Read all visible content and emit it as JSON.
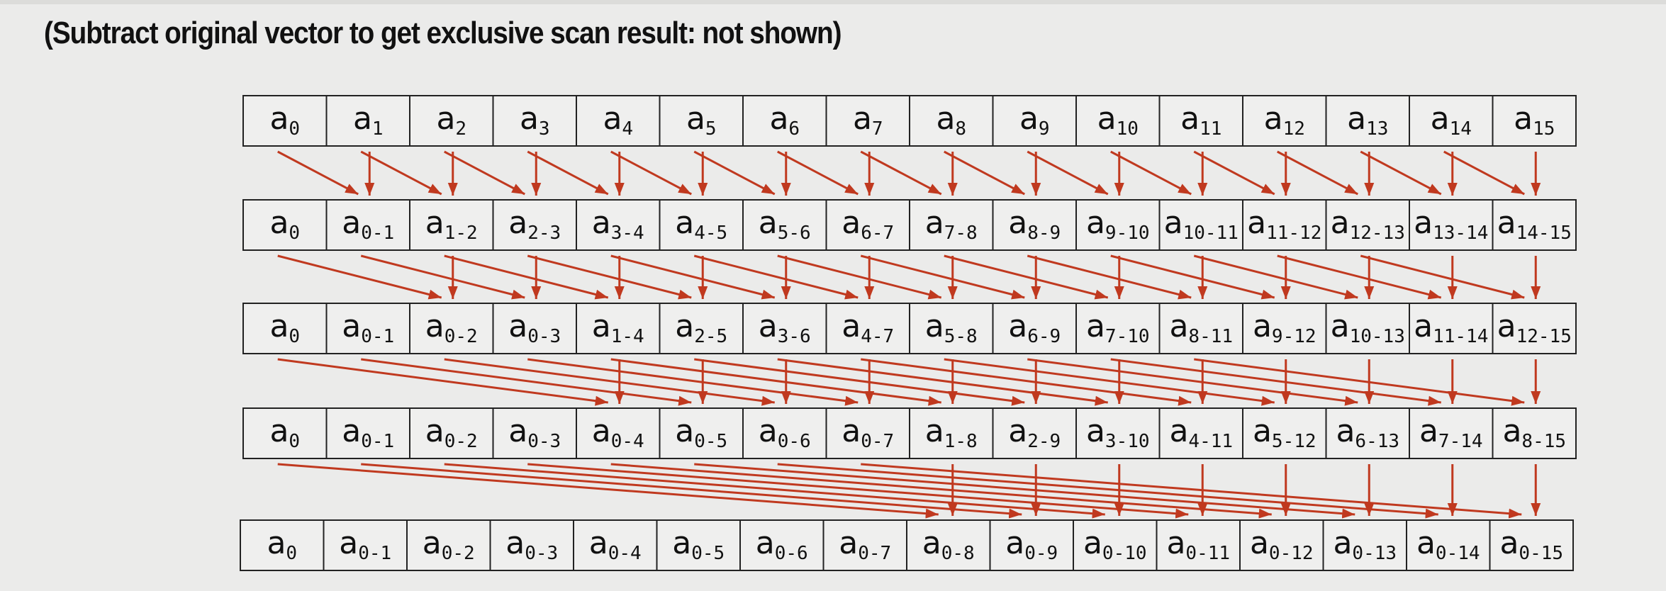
{
  "subtitle": "(Subtract original vector to get exclusive scan result: not shown)",
  "colors": {
    "arrow": "#c0391f",
    "cell_border": "#222222",
    "text": "#111111",
    "background": "#ebebea"
  },
  "rows": [
    {
      "step_offset": 0,
      "cells": [
        {
          "base": "a",
          "sub": "0"
        },
        {
          "base": "a",
          "sub": "1"
        },
        {
          "base": "a",
          "sub": "2"
        },
        {
          "base": "a",
          "sub": "3"
        },
        {
          "base": "a",
          "sub": "4"
        },
        {
          "base": "a",
          "sub": "5"
        },
        {
          "base": "a",
          "sub": "6"
        },
        {
          "base": "a",
          "sub": "7"
        },
        {
          "base": "a",
          "sub": "8"
        },
        {
          "base": "a",
          "sub": "9"
        },
        {
          "base": "a",
          "sub": "10"
        },
        {
          "base": "a",
          "sub": "11"
        },
        {
          "base": "a",
          "sub": "12"
        },
        {
          "base": "a",
          "sub": "13"
        },
        {
          "base": "a",
          "sub": "14"
        },
        {
          "base": "a",
          "sub": "15"
        }
      ]
    },
    {
      "step_offset": 1,
      "cells": [
        {
          "base": "a",
          "sub": "0"
        },
        {
          "base": "a",
          "sub": "0-1"
        },
        {
          "base": "a",
          "sub": "1-2"
        },
        {
          "base": "a",
          "sub": "2-3"
        },
        {
          "base": "a",
          "sub": "3-4"
        },
        {
          "base": "a",
          "sub": "4-5"
        },
        {
          "base": "a",
          "sub": "5-6"
        },
        {
          "base": "a",
          "sub": "6-7"
        },
        {
          "base": "a",
          "sub": "7-8"
        },
        {
          "base": "a",
          "sub": "8-9"
        },
        {
          "base": "a",
          "sub": "9-10"
        },
        {
          "base": "a",
          "sub": "10-11"
        },
        {
          "base": "a",
          "sub": "11-12"
        },
        {
          "base": "a",
          "sub": "12-13"
        },
        {
          "base": "a",
          "sub": "13-14"
        },
        {
          "base": "a",
          "sub": "14-15"
        }
      ]
    },
    {
      "step_offset": 2,
      "cells": [
        {
          "base": "a",
          "sub": "0"
        },
        {
          "base": "a",
          "sub": "0-1"
        },
        {
          "base": "a",
          "sub": "0-2"
        },
        {
          "base": "a",
          "sub": "0-3"
        },
        {
          "base": "a",
          "sub": "1-4"
        },
        {
          "base": "a",
          "sub": "2-5"
        },
        {
          "base": "a",
          "sub": "3-6"
        },
        {
          "base": "a",
          "sub": "4-7"
        },
        {
          "base": "a",
          "sub": "5-8"
        },
        {
          "base": "a",
          "sub": "6-9"
        },
        {
          "base": "a",
          "sub": "7-10"
        },
        {
          "base": "a",
          "sub": "8-11"
        },
        {
          "base": "a",
          "sub": "9-12"
        },
        {
          "base": "a",
          "sub": "10-13"
        },
        {
          "base": "a",
          "sub": "11-14"
        },
        {
          "base": "a",
          "sub": "12-15"
        }
      ]
    },
    {
      "step_offset": 4,
      "cells": [
        {
          "base": "a",
          "sub": "0"
        },
        {
          "base": "a",
          "sub": "0-1"
        },
        {
          "base": "a",
          "sub": "0-2"
        },
        {
          "base": "a",
          "sub": "0-3"
        },
        {
          "base": "a",
          "sub": "0-4"
        },
        {
          "base": "a",
          "sub": "0-5"
        },
        {
          "base": "a",
          "sub": "0-6"
        },
        {
          "base": "a",
          "sub": "0-7"
        },
        {
          "base": "a",
          "sub": "1-8"
        },
        {
          "base": "a",
          "sub": "2-9"
        },
        {
          "base": "a",
          "sub": "3-10"
        },
        {
          "base": "a",
          "sub": "4-11"
        },
        {
          "base": "a",
          "sub": "5-12"
        },
        {
          "base": "a",
          "sub": "6-13"
        },
        {
          "base": "a",
          "sub": "7-14"
        },
        {
          "base": "a",
          "sub": "8-15"
        }
      ]
    },
    {
      "step_offset": 8,
      "cells": [
        {
          "base": "a",
          "sub": "0"
        },
        {
          "base": "a",
          "sub": "0-1"
        },
        {
          "base": "a",
          "sub": "0-2"
        },
        {
          "base": "a",
          "sub": "0-3"
        },
        {
          "base": "a",
          "sub": "0-4"
        },
        {
          "base": "a",
          "sub": "0-5"
        },
        {
          "base": "a",
          "sub": "0-6"
        },
        {
          "base": "a",
          "sub": "0-7"
        },
        {
          "base": "a",
          "sub": "0-8"
        },
        {
          "base": "a",
          "sub": "0-9"
        },
        {
          "base": "a",
          "sub": "0-10"
        },
        {
          "base": "a",
          "sub": "0-11"
        },
        {
          "base": "a",
          "sub": "0-12"
        },
        {
          "base": "a",
          "sub": "0-13"
        },
        {
          "base": "a",
          "sub": "0-14"
        },
        {
          "base": "a",
          "sub": "0-15"
        }
      ]
    }
  ]
}
